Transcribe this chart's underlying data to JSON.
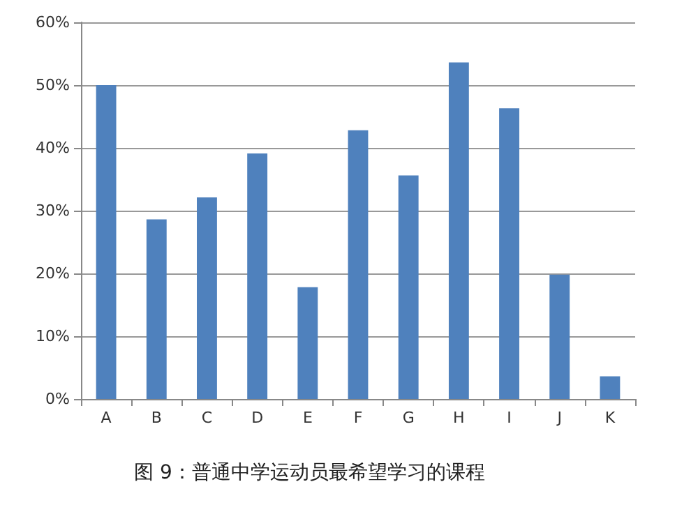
{
  "chart_data": {
    "type": "bar",
    "categories": [
      "A",
      "B",
      "C",
      "D",
      "E",
      "F",
      "G",
      "H",
      "I",
      "J",
      "K"
    ],
    "values": [
      50,
      28.6,
      32.1,
      39.1,
      17.8,
      42.8,
      35.6,
      53.6,
      46.3,
      19.8,
      3.6
    ],
    "color": "#4f81bd",
    "ylim": [
      0,
      60
    ],
    "yticks": [
      {
        "value": 0,
        "label": "0%"
      },
      {
        "value": 10,
        "label": "10%"
      },
      {
        "value": 20,
        "label": "20%"
      },
      {
        "value": 30,
        "label": "30%"
      },
      {
        "value": 40,
        "label": "40%"
      },
      {
        "value": 50,
        "label": "50%"
      },
      {
        "value": 60,
        "label": "60%"
      }
    ],
    "grid": "y",
    "annotations": [
      "图 9：普通中学运动员最希望学习的课程"
    ]
  }
}
